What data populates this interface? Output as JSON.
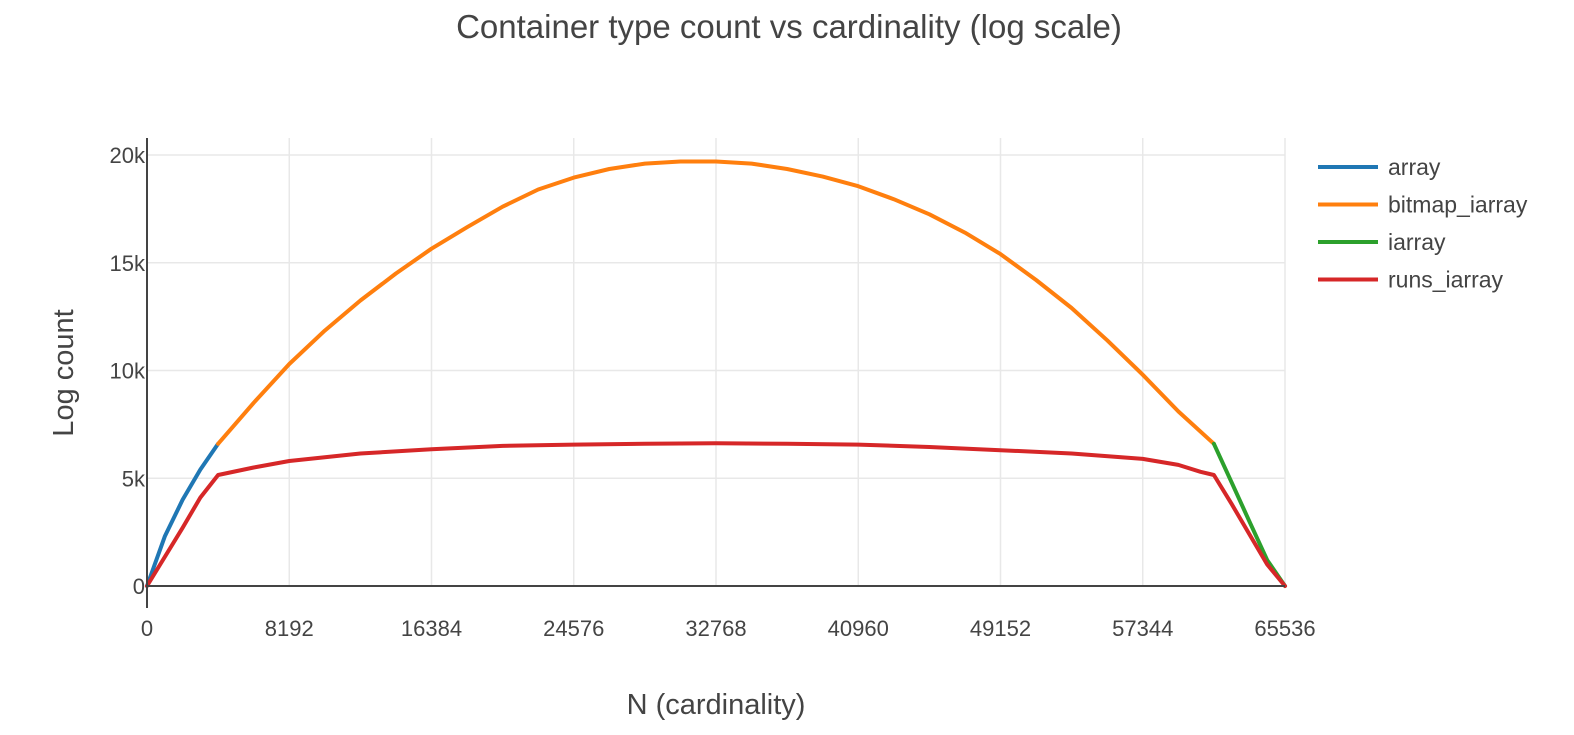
{
  "chart_data": {
    "type": "line",
    "title": "Container type count vs cardinality (log scale)",
    "xlabel": "N (cardinality)",
    "ylabel": "Log count",
    "xlim": [
      0,
      65536
    ],
    "ylim": [
      0,
      20000
    ],
    "x_ticks": [
      0,
      8192,
      16384,
      24576,
      32768,
      40960,
      49152,
      57344,
      65536
    ],
    "x_tick_labels": [
      "0",
      "8192",
      "16384",
      "24576",
      "32768",
      "40960",
      "49152",
      "57344",
      "65536"
    ],
    "y_ticks": [
      0,
      5000,
      10000,
      15000,
      20000
    ],
    "y_tick_labels": [
      "0",
      "5k",
      "10k",
      "15k",
      "20k"
    ],
    "grid": true,
    "legend_position": "top-right",
    "series": [
      {
        "name": "array",
        "color": "#1f77b4",
        "x": [
          0,
          1024,
          2048,
          3072,
          4096
        ],
        "y": [
          0,
          2300,
          4000,
          5400,
          6600
        ]
      },
      {
        "name": "bitmap_iarray",
        "color": "#ff7f0e",
        "x": [
          4096,
          6144,
          8192,
          10240,
          12288,
          14336,
          16384,
          18432,
          20480,
          22528,
          24576,
          26624,
          28672,
          30720,
          32768,
          34816,
          36864,
          38912,
          40960,
          43008,
          45056,
          47104,
          49152,
          51200,
          53248,
          55296,
          57344,
          59392,
          61440
        ],
        "y": [
          6600,
          8500,
          10300,
          11850,
          13250,
          14500,
          15650,
          16650,
          17600,
          18400,
          18950,
          19350,
          19600,
          19700,
          19700,
          19600,
          19350,
          19000,
          18550,
          17950,
          17250,
          16400,
          15400,
          14200,
          12900,
          11400,
          9800,
          8100,
          6600
        ]
      },
      {
        "name": "iarray",
        "color": "#2ca02c",
        "x": [
          61440,
          62464,
          63488,
          64512,
          65536
        ],
        "y": [
          6600,
          4800,
          3000,
          1200,
          0
        ]
      },
      {
        "name": "runs_iarray",
        "color": "#d62728",
        "x": [
          0,
          2048,
          3072,
          4096,
          6144,
          8192,
          12288,
          16384,
          20480,
          24576,
          28672,
          32768,
          36864,
          40960,
          45056,
          49152,
          53248,
          57344,
          59392,
          60672,
          61440,
          62464,
          63488,
          64512,
          65536
        ],
        "y": [
          0,
          2700,
          4100,
          5150,
          5500,
          5800,
          6150,
          6350,
          6500,
          6560,
          6600,
          6620,
          6600,
          6560,
          6450,
          6300,
          6150,
          5900,
          5620,
          5300,
          5150,
          3800,
          2400,
          1000,
          0
        ]
      }
    ]
  }
}
